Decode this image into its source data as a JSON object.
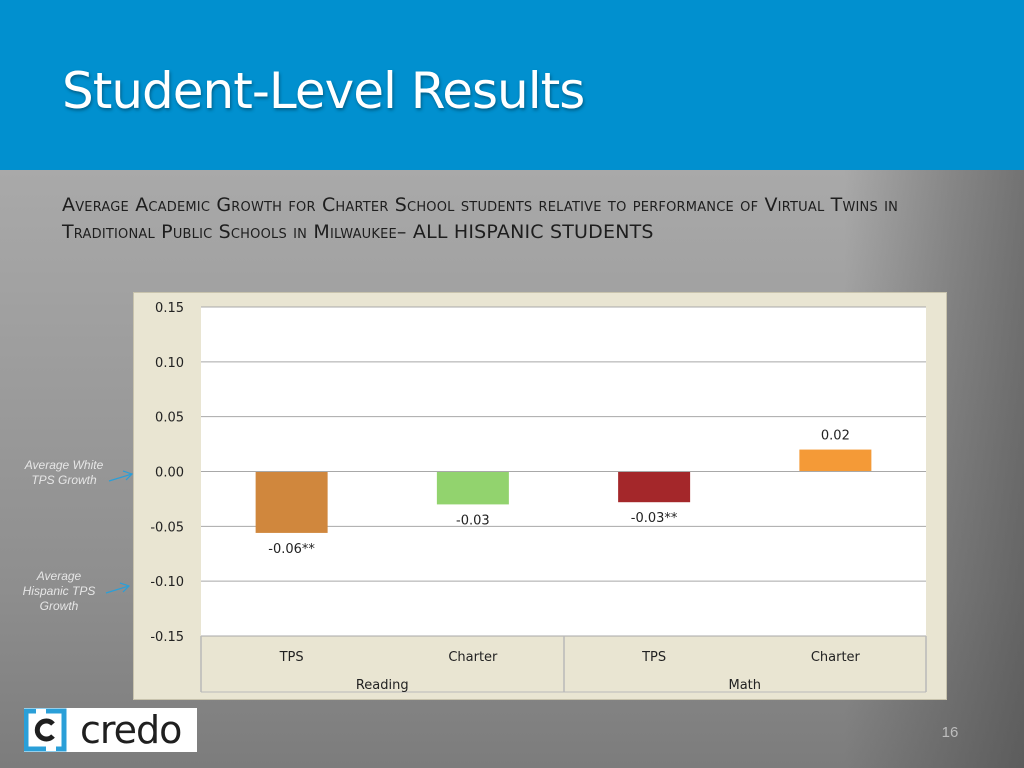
{
  "title": "Student-Level Results",
  "subtitle": "Average Academic Growth for Charter School students relative to performance of Virtual Twins in Traditional Public Schools in Milwaukee– ALL HISPANIC STUDENTS",
  "annotations": {
    "white_tps": "Average White TPS Growth",
    "hispanic_tps": "Average Hispanic TPS Growth"
  },
  "logo_text": "credo",
  "page_number": "16",
  "colors": {
    "header": "#0190cf",
    "accent": "#2a9fd8"
  },
  "chart_data": {
    "type": "bar",
    "ylim": [
      -0.15,
      0.15
    ],
    "yticks": [
      "0.15",
      "0.10",
      "0.05",
      "0.00",
      "-0.05",
      "-0.10",
      "-0.15"
    ],
    "ytick_values": [
      0.15,
      0.1,
      0.05,
      0.0,
      -0.05,
      -0.1,
      -0.15
    ],
    "groups": [
      {
        "label": "Reading",
        "categories": [
          "TPS",
          "Charter"
        ]
      },
      {
        "label": "Math",
        "categories": [
          "TPS",
          "Charter"
        ]
      }
    ],
    "bars": [
      {
        "group": "Reading",
        "category": "TPS",
        "value": -0.056,
        "label": "-0.06**",
        "color": "#d0873d"
      },
      {
        "group": "Reading",
        "category": "Charter",
        "value": -0.03,
        "label": "-0.03",
        "color": "#92d36e"
      },
      {
        "group": "Math",
        "category": "TPS",
        "value": -0.028,
        "label": "-0.03**",
        "color": "#a4272a"
      },
      {
        "group": "Math",
        "category": "Charter",
        "value": 0.02,
        "label": "0.02",
        "color": "#f49a37"
      }
    ],
    "grid": true
  }
}
